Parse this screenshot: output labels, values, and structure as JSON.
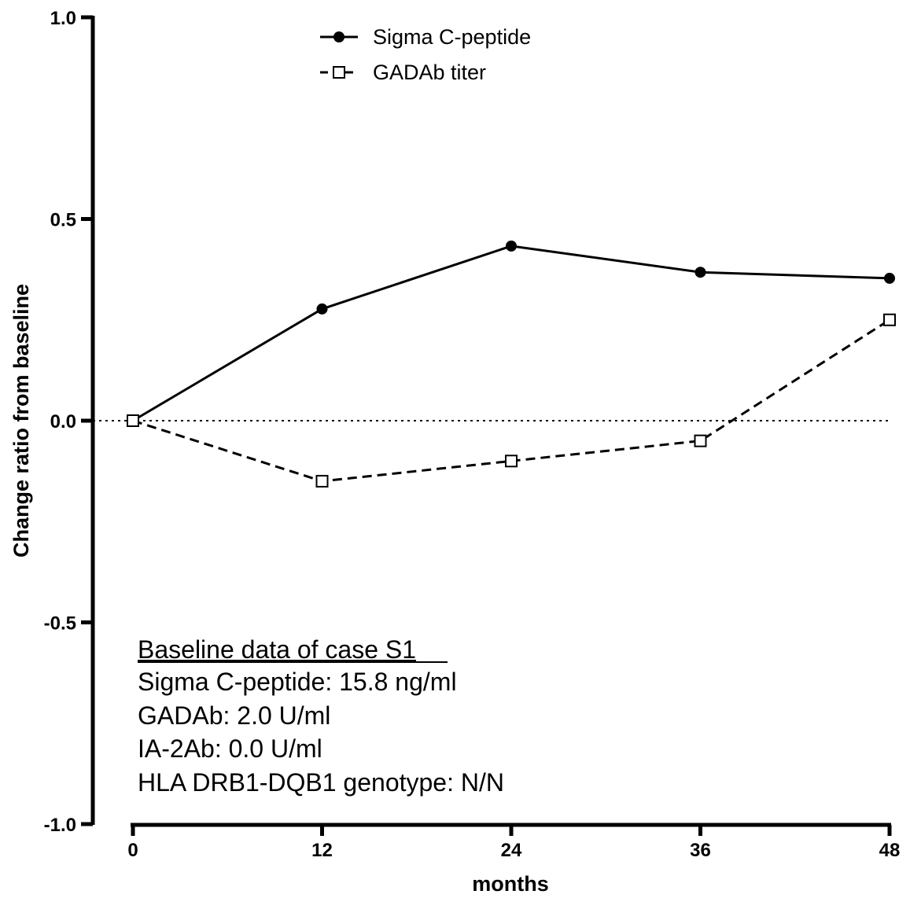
{
  "chart_data": {
    "type": "line",
    "x": [
      0,
      12,
      24,
      36,
      48
    ],
    "xticks": [
      "0",
      "12",
      "24",
      "36",
      "48"
    ],
    "xlabel": "months",
    "ylabel": "Change ratio from baseline",
    "yticks": [
      "1.0",
      "0.5",
      "0.0",
      "-0.5",
      "-1.0"
    ],
    "xlim": [
      0,
      48
    ],
    "ylim": [
      -1.0,
      1.0
    ],
    "grid": false,
    "reference_line": {
      "y": 0.0,
      "style": "dotted"
    },
    "legend_position": "top-center",
    "series": [
      {
        "name": "Sigma C-peptide",
        "values": [
          0.0,
          0.277,
          0.433,
          0.368,
          0.353
        ],
        "marker": "filled-circle",
        "line": "solid",
        "color": "#000000"
      },
      {
        "name": "GADAb titer",
        "values": [
          0.0,
          -0.15,
          -0.1,
          -0.05,
          0.25
        ],
        "marker": "open-square",
        "line": "dashed",
        "color": "#000000"
      }
    ],
    "annotation": {
      "heading": "Baseline data of case S1",
      "lines": [
        "Sigma C-peptide: 15.8 ng/ml",
        "GADAb: 2.0 U/ml",
        "IA-2Ab: 0.0 U/ml",
        "HLA DRB1-DQB1 genotype: N/N"
      ]
    }
  }
}
